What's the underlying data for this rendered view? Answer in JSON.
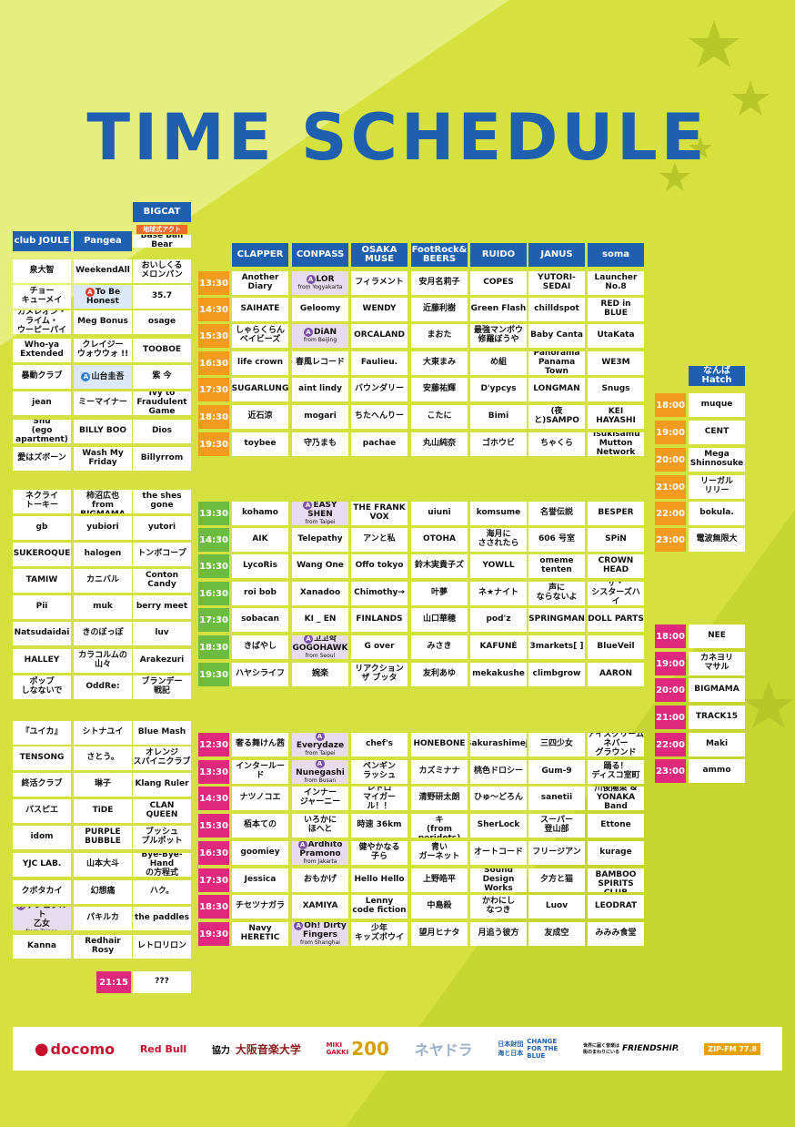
{
  "title": "TIME SCHEDULE",
  "colors": {
    "blue": "#1f5fb0",
    "orange": "#f39a1f",
    "green": "#6cbd3f",
    "pink": "#e0297c",
    "lime": "#d4e13e"
  },
  "left": {
    "headers": {
      "joule": "club JOULE",
      "pangea": "Pangea",
      "bigcat": "BIGCAT",
      "bigcat_note": "地球式アクト"
    },
    "b1": {
      "joule": [
        "泉大智",
        "チョー\nキューメイ",
        "カメレオン・\nライム・\nウーピーパイ",
        "Who-ya\nExtended",
        "暴動クラブ",
        "jean",
        "Shu\n(ego apartment)",
        "愛はズボーン"
      ],
      "pangea": [
        "WeekendAll",
        "To Be Honest",
        "Meg Bonus",
        "クレイジー\nウォウウォ !!",
        "山台圭吾",
        "ミーマイナー",
        "BILLY BOO",
        "Wash My Friday"
      ],
      "bigcat": [
        "Base Ball Bear",
        "おいしくる\nメロンパン",
        "35.7",
        "osage",
        "TOOBOE",
        "紫 今",
        "Ivy to\nFraudulent Game",
        "Dios",
        "Billyrrom"
      ]
    },
    "b2": {
      "joule": [
        "ネクライ\nトーキー",
        "gb",
        "SUKEROQUE",
        "TAMIW",
        "Pii",
        "Natsudaidai",
        "HALLEY",
        "ポップ\nしなないで"
      ],
      "pangea": [
        "金井政人と\n柿沼広也\nfrom BIGMAMA",
        "yubiori",
        "halogen",
        "カニバル",
        "muk",
        "きのぼっぽ",
        "カラコルムの\n山々",
        "OddRe:"
      ],
      "bigcat": [
        "the shes gone",
        "yutori",
        "トンボコープ",
        "Conton Candy",
        "berry meet",
        "luv",
        "Arakezuri",
        "ブランデー\n戦記"
      ]
    },
    "b3": {
      "joule": [
        "『ユイカ』",
        "TENSONG",
        "終活クラブ",
        "パスピエ",
        "idom",
        "YJC LAB.",
        "クボタカイ",
        "ゲシュタルト\n乙女",
        "Kanna"
      ],
      "joule_sub": "from Tainan",
      "pangea": [
        "シトナユイ",
        "さとう。",
        "琳子",
        "TiDE",
        "PURPLE\nBUBBLE",
        "山本大斗",
        "幻想痛",
        "パキルカ",
        "Redhair Rosy"
      ],
      "bigcat": [
        "Blue Mash",
        "オレンジ\nスパイニクラブ",
        "Klang Ruler",
        "CLAN QUEEN",
        "ブッシュ\nプルポット",
        "Bye-Bye-Hand\nの方程式",
        "ハク。",
        "the paddles",
        "レトロリロン"
      ]
    },
    "last_time": "21:15",
    "last_act": "???"
  },
  "mid": {
    "headers": [
      "CLAPPER",
      "CONPASS",
      "OSAKA\nMUSE",
      "FootRock&\nBEERS",
      "RUIDO",
      "JANUS",
      "soma"
    ],
    "b1": {
      "times": [
        "13:30",
        "14:30",
        "15:30",
        "16:30",
        "17:30",
        "18:30",
        "19:30"
      ],
      "rows": [
        [
          "Another Diary",
          "LOR",
          "フィラメント",
          "安月名莉子",
          "COPES",
          "YUTORI-SEDAI",
          "Launcher No.8"
        ],
        [
          "SAIHATE",
          "Geloomy",
          "WENDY",
          "近藤利樹",
          "Green Flash",
          "chilldspot",
          "RED in BLUE"
        ],
        [
          "しゃらくらん\nベイビーズ",
          "DiAN",
          "ORCALAND",
          "まおた",
          "最強マンボウ\n修羅ぼうや",
          "Baby Canta",
          "UtaKata"
        ],
        [
          "life crown",
          "春風レコード",
          "Faulieu.",
          "大東まみ",
          "め組",
          "Panorama\nPanama Town",
          "WE3M"
        ],
        [
          "SUGARLUNG",
          "aint lindy",
          "バウンダリー",
          "安藤祐輝",
          "D'ypcys",
          "LONGMAN",
          "Snugs"
        ],
        [
          "近石涼",
          "mogari",
          "ちたへんりー",
          "こたに",
          "Bimi",
          "(夜と)SAMPO",
          "KEI\nHAYASHI"
        ],
        [
          "toybee",
          "守乃まも",
          "pachae",
          "丸山純奈",
          "ゴホウビ",
          "ちゃくら",
          "Tsukisamu\nMutton Network"
        ]
      ],
      "subs": [
        "from Yogyakarta",
        "from Beijing"
      ]
    },
    "b2": {
      "times": [
        "13:30",
        "14:30",
        "15:30",
        "16:30",
        "17:30",
        "18:30",
        "19:30"
      ],
      "rows": [
        [
          "kohamo",
          "EASY SHEN",
          "THE FRANK VOX",
          "uiuni",
          "komsume",
          "名誉伝説",
          "BESPER"
        ],
        [
          "AIK",
          "Telepathy",
          "アンと私",
          "OTOHA",
          "海月に\nさされたら",
          "606 号室",
          "SPiN"
        ],
        [
          "LycoRis",
          "Wang One",
          "Offo tokyo",
          "鈴木実貴子ズ",
          "YOWLL",
          "omeme tenten",
          "CROWN HEAD"
        ],
        [
          "roi bob",
          "Xanadoo",
          "Chimothy→",
          "叶夢",
          "ネ★ナイト",
          "声に\nならないよ",
          "ザ・\nシスターズハイ"
        ],
        [
          "sobacan",
          "KI _ EN",
          "FINLANDS",
          "山口華穂",
          "pod'z",
          "SPRINGMAN",
          "DOLL PARTS"
        ],
        [
          "きばやし",
          "고고학\nGOGOHAWK",
          "G over",
          "みさき",
          "KAFUNÉ",
          "3markets[ ]",
          "BlueVeil"
        ],
        [
          "ハヤシライフ",
          "婉楽",
          "リアクション\nザ ブッタ",
          "友利あゆ",
          "mekakushe",
          "climbgrow",
          "AARON"
        ]
      ],
      "subs": [
        "from Taipei",
        "from Seoul"
      ]
    },
    "b3": {
      "times": [
        "12:30",
        "13:30",
        "14:30",
        "15:30",
        "16:30",
        "17:30",
        "18:30",
        "19:30"
      ],
      "rows": [
        [
          "奢る舞けん茜",
          "Everydaze",
          "chef's",
          "HONEBONE",
          "Sakurashimeji",
          "三四少女",
          "アイスクリーム\nネバー\nグラウンド"
        ],
        [
          "インタールード",
          "Nunegashi",
          "ペンギン\nラッシュ",
          "カズミナナ",
          "桃色ドロシー",
          "Gum-9",
          "踊る！\nディスコ室町"
        ],
        [
          "ナツノコエ",
          "インナー\nジャーニー",
          "レトロ\nマイガール！！",
          "清野研太朗",
          "ひゅ〜どろん",
          "sanetii",
          "川後陽菜 &\nYONAKA Band"
        ],
        [
          "栢本ての",
          "いろかに\nほへと",
          "時速 36km",
          "タカハシコウキ\n(from peridots)",
          "SherLock",
          "スーパー\n登山部",
          "Ettone"
        ],
        [
          "goomiey",
          "Ardhito\nPramono",
          "健やかなる\n子ら",
          "青い\nガーネット",
          "オートコード",
          "フリージアン",
          "kurage"
        ],
        [
          "Jessica",
          "おもかげ",
          "Hello Hello",
          "上野皓平",
          "Sound Design\nWorks",
          "夕方と猫",
          "THE BAMBOO\nSPIRITS CLUB"
        ],
        [
          "チセツナガラ",
          "XAMIYA",
          "Lenny\ncode fiction",
          "中島殺",
          "かわにし\nなつき",
          "Luov",
          "LEODRAT"
        ],
        [
          "Navy HERETIC",
          "Oh! Dirty\nFingers",
          "少年\nキッズボウイ",
          "望月ヒナタ",
          "月追う彼方",
          "友成空",
          "みみみ食堂"
        ]
      ],
      "subs": [
        "from Taipei",
        "from Busan",
        "from Jakarta",
        "from Shanghai"
      ]
    }
  },
  "right": {
    "header": "なんばHatch",
    "b1": {
      "times": [
        "18:00",
        "19:00",
        "20:00",
        "21:00",
        "22:00",
        "23:00"
      ],
      "acts": [
        "muque",
        "CENT",
        "Mega\nShinnosuke",
        "リーガル\nリリー",
        "bokula.",
        "電波無限大"
      ]
    },
    "b2": {
      "times": [
        "18:00",
        "19:00",
        "20:00",
        "21:00",
        "22:00",
        "23:00"
      ],
      "acts": [
        "NEE",
        "カネヨリ\nマサル",
        "BIGMAMA",
        "TRACK15",
        "Maki",
        "ammo"
      ]
    }
  },
  "footer": {
    "docomo": "docomo",
    "redbull": "Red Bull",
    "kyoryoku": "協力",
    "osaka_ongaku": "大阪音楽大学",
    "miki": "MIKI\nGAKKI",
    "miki_num": "200",
    "nevadora": "ネヤドラ",
    "umi": "日本財団\n海と日本",
    "change": "CHANGE\nFOR THE\nBLUE",
    "friendship": "世界に届く音楽は\n街のまわりにいる",
    "friendship2": "FRIENDSHIP.",
    "zip": "ZIP-FM 77.8"
  }
}
